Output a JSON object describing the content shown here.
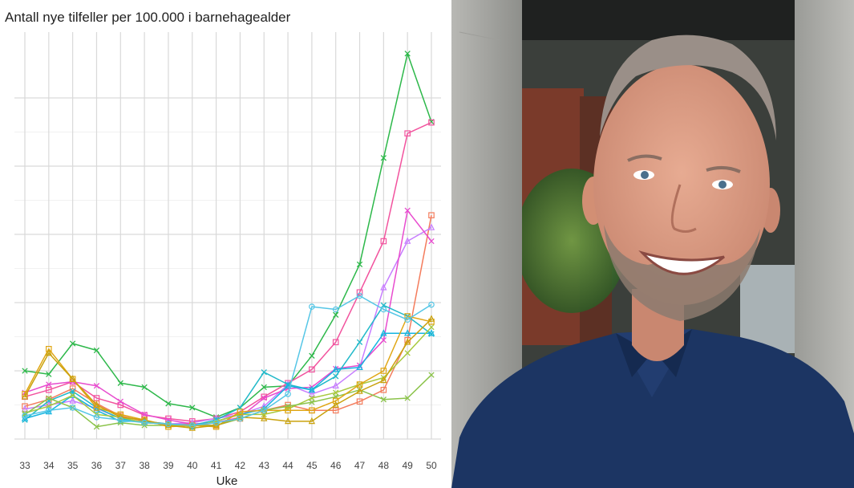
{
  "chart_data": {
    "type": "line",
    "title": "Antall nye tilfeller per 100.000 i barnehagealder",
    "xlabel": "Uke",
    "ylabel": "",
    "x": [
      33,
      34,
      35,
      36,
      37,
      38,
      39,
      40,
      41,
      42,
      43,
      44,
      45,
      46,
      47,
      48,
      49,
      50
    ],
    "ylim": [
      0,
      580
    ],
    "y_grid": [
      0,
      100,
      200,
      300,
      400,
      500
    ],
    "y_tick_labels_shown": false,
    "grid": true,
    "legend": "none",
    "series": [
      {
        "color": "#2db84a",
        "marker": "x",
        "values": [
          100,
          95,
          140,
          130,
          82,
          76,
          52,
          46,
          32,
          46,
          76,
          78,
          122,
          182,
          256,
          412,
          565,
          465
        ]
      },
      {
        "color": "#f2539e",
        "marker": "square",
        "values": [
          62,
          72,
          84,
          60,
          50,
          35,
          30,
          26,
          30,
          40,
          62,
          82,
          102,
          142,
          215,
          290,
          448,
          464
        ]
      },
      {
        "color": "#f47c5c",
        "marker": "square",
        "values": [
          48,
          58,
          74,
          52,
          34,
          26,
          22,
          22,
          20,
          30,
          42,
          50,
          42,
          42,
          55,
          72,
          145,
          328
        ]
      },
      {
        "color": "#c77dff",
        "marker": "triangle",
        "values": [
          44,
          50,
          56,
          45,
          30,
          24,
          22,
          24,
          30,
          36,
          48,
          80,
          66,
          78,
          105,
          222,
          290,
          310
        ]
      },
      {
        "color": "#e84ccf",
        "marker": "x",
        "values": [
          68,
          80,
          84,
          78,
          55,
          36,
          28,
          22,
          24,
          32,
          60,
          74,
          76,
          103,
          108,
          145,
          335,
          290
        ]
      },
      {
        "color": "#21b9c9",
        "marker": "x",
        "values": [
          28,
          56,
          70,
          46,
          30,
          24,
          22,
          20,
          28,
          46,
          98,
          80,
          72,
          92,
          142,
          196,
          180,
          154
        ]
      },
      {
        "color": "#15b5e0",
        "marker": "triangle",
        "values": [
          30,
          40,
          64,
          42,
          26,
          26,
          22,
          18,
          26,
          36,
          44,
          78,
          72,
          102,
          105,
          155,
          155,
          155
        ]
      },
      {
        "color": "#a8c93e",
        "marker": "x",
        "values": [
          38,
          48,
          64,
          36,
          32,
          24,
          22,
          18,
          26,
          36,
          36,
          44,
          60,
          68,
          80,
          90,
          126,
          164
        ]
      },
      {
        "color": "#8bc34a",
        "marker": "x",
        "values": [
          36,
          60,
          46,
          18,
          24,
          20,
          20,
          20,
          20,
          30,
          42,
          48,
          54,
          62,
          72,
          58,
          60,
          94
        ]
      },
      {
        "color": "#e0a614",
        "marker": "square",
        "values": [
          66,
          132,
          88,
          46,
          36,
          28,
          18,
          20,
          18,
          40,
          42,
          42,
          42,
          56,
          80,
          100,
          180,
          172
        ]
      },
      {
        "color": "#c9a20e",
        "marker": "triangle",
        "values": [
          62,
          126,
          88,
          50,
          32,
          28,
          20,
          16,
          20,
          32,
          30,
          26,
          26,
          50,
          70,
          86,
          142,
          176
        ]
      },
      {
        "color": "#55c6e6",
        "marker": "circle",
        "values": [
          34,
          42,
          46,
          32,
          28,
          24,
          22,
          20,
          24,
          30,
          42,
          66,
          194,
          190,
          210,
          190,
          175,
          197
        ]
      }
    ]
  },
  "photo": {
    "subject": "smiling-man-portrait"
  }
}
